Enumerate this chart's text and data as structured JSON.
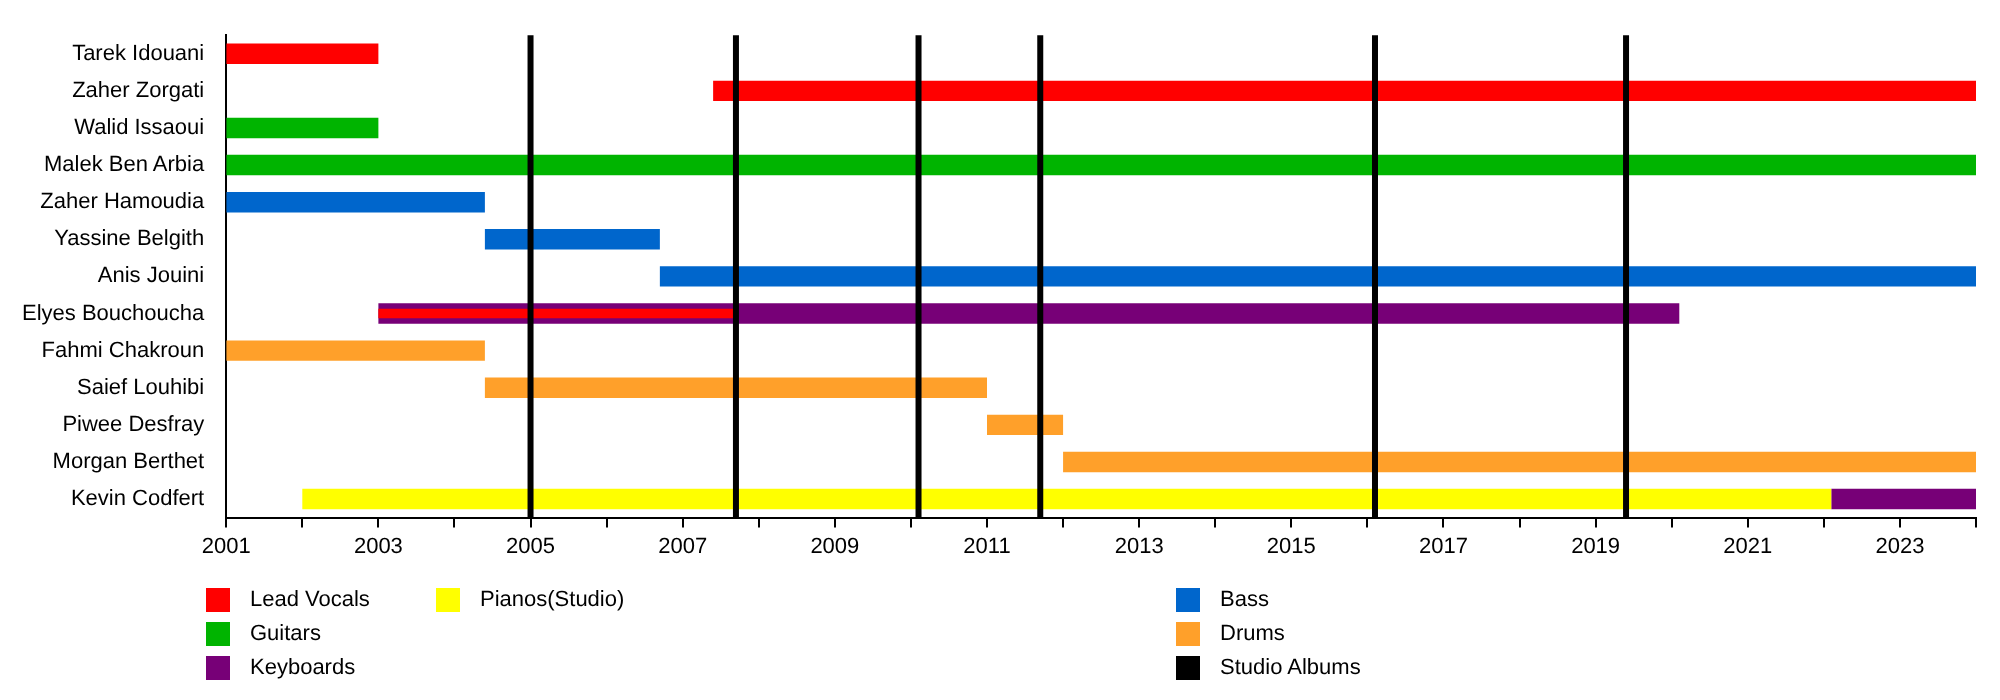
{
  "chart_data": {
    "type": "bar",
    "orientation": "horizontal",
    "categories": [
      "Tarek Idouani",
      "Zaher Zorgati",
      "Walid Issaoui",
      "Malek Ben Arbia",
      "Zaher Hamoudia",
      "Yassine Belgith",
      "Anis Jouini",
      "Elyes Bouchoucha",
      "Fahmi Chakroun",
      "Saief Louhibi",
      "Piwee Desfray",
      "Morgan Berthet",
      "Kevin Codfert"
    ],
    "series": [
      {
        "name": "Lead Vocals",
        "color": "#ff0000",
        "base": [
          2001,
          2007.4,
          null,
          null,
          null,
          null,
          null,
          2003,
          null,
          null,
          null,
          null,
          null
        ],
        "values": [
          2,
          16.6,
          null,
          null,
          null,
          null,
          null,
          4.7,
          null,
          null,
          null,
          null,
          null
        ]
      },
      {
        "name": "Guitars",
        "color": "#00b400",
        "base": [
          null,
          null,
          2001,
          2001,
          null,
          null,
          null,
          null,
          null,
          null,
          null,
          null,
          null
        ],
        "values": [
          null,
          null,
          2,
          23,
          null,
          null,
          null,
          null,
          null,
          null,
          null,
          null,
          null
        ]
      },
      {
        "name": "Keyboards",
        "color": "#770077",
        "base": [
          null,
          null,
          null,
          null,
          null,
          null,
          null,
          2003,
          null,
          null,
          null,
          null,
          2022.1
        ],
        "values": [
          null,
          null,
          null,
          null,
          null,
          null,
          null,
          17.1,
          null,
          null,
          null,
          null,
          1.9
        ]
      },
      {
        "name": "Pianos(Studio)",
        "color": "#ffff00",
        "base": [
          null,
          null,
          null,
          null,
          null,
          null,
          null,
          null,
          null,
          null,
          null,
          null,
          2002
        ],
        "values": [
          null,
          null,
          null,
          null,
          null,
          null,
          null,
          null,
          null,
          null,
          null,
          null,
          20.1
        ]
      },
      {
        "name": "Bass",
        "color": "#0066cc",
        "base": [
          null,
          null,
          null,
          null,
          2001,
          2004.4,
          2006.7,
          null,
          null,
          null,
          null,
          null,
          null
        ],
        "values": [
          null,
          null,
          null,
          null,
          3.4,
          2.3,
          17.3,
          null,
          null,
          null,
          null,
          null,
          null
        ]
      },
      {
        "name": "Drums",
        "color": "#ffa02a",
        "base": [
          null,
          null,
          null,
          null,
          null,
          null,
          null,
          null,
          2001,
          2004.4,
          2011,
          2012,
          null
        ],
        "values": [
          null,
          null,
          null,
          null,
          null,
          null,
          null,
          null,
          3.4,
          6.6,
          1,
          12,
          null
        ]
      }
    ],
    "ref_lines": [
      {
        "axis": "x",
        "value": 2005,
        "label": "Studio Albums",
        "color": "#000000"
      },
      {
        "axis": "x",
        "value": 2007.7,
        "color": "#000000"
      },
      {
        "axis": "x",
        "value": 2010.1,
        "color": "#000000"
      },
      {
        "axis": "x",
        "value": 2011.7,
        "color": "#000000"
      },
      {
        "axis": "x",
        "value": 2016.1,
        "color": "#000000"
      },
      {
        "axis": "x",
        "value": 2019.4,
        "color": "#000000"
      }
    ],
    "xlim": [
      2001,
      2024
    ],
    "xticks": [
      2001,
      {
        "value": 2002,
        "label": null
      },
      2003,
      {
        "value": 2004,
        "label": null
      },
      2005,
      {
        "value": 2006,
        "label": null
      },
      2007,
      {
        "value": 2008,
        "label": null
      },
      2009,
      {
        "value": 2010,
        "label": null
      },
      2011,
      {
        "value": 2012,
        "label": null
      },
      2013,
      {
        "value": 2014,
        "label": null
      },
      2015,
      {
        "value": 2016,
        "label": null
      },
      2017,
      {
        "value": 2018,
        "label": null
      },
      2019,
      {
        "value": 2020,
        "label": null
      },
      2021,
      {
        "value": 2022,
        "label": null
      },
      2023,
      {
        "value": 2024,
        "label": null
      }
    ],
    "legend": "bottom"
  }
}
